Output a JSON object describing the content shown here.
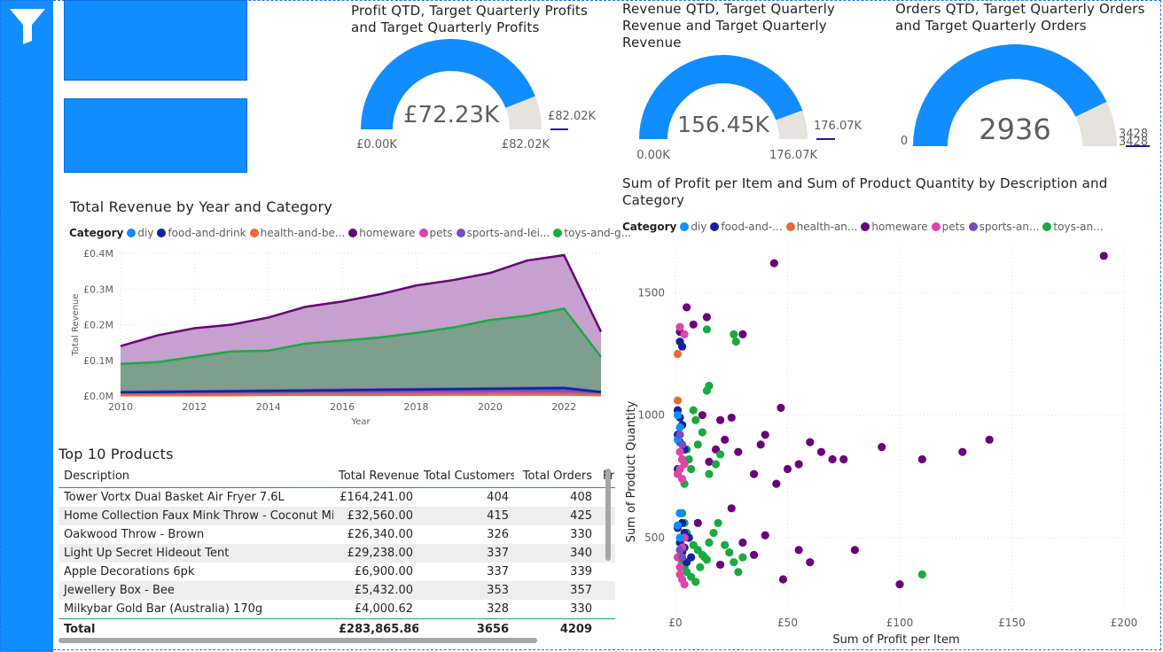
{
  "filter_pane": {
    "icon": "filter-icon"
  },
  "gauges": [
    {
      "id": "profit",
      "title_lines": [
        "Profit QTD, Target Quarterly Profits",
        "and Target Quarterly Profits"
      ],
      "value_label": "£72.23K",
      "min_label": "£0.00K",
      "max_label": "£82.02K",
      "target_label": "£82.02K",
      "fill_fraction": 0.88
    },
    {
      "id": "revenue",
      "title_lines": [
        "Revenue QTD, Target Quarterly",
        "Revenue and Target Quarterly",
        "Revenue"
      ],
      "value_label": "156.45K",
      "min_label": "0.00K",
      "max_label": "176.07K",
      "target_label": "176.07K",
      "fill_fraction": 0.889
    },
    {
      "id": "orders",
      "title_lines": [
        "Orders QTD, Target Quarterly Orders",
        "and Target Quarterly Orders"
      ],
      "value_label": "2936",
      "min_label": "0",
      "max_label": "3428",
      "target_label": "3428",
      "fill_fraction": 0.856
    }
  ],
  "colors": {
    "diy": "#118dff",
    "food-and-drink": "#12239e",
    "health-and-beauty": "#e66c37",
    "homeware": "#6b007b",
    "pets": "#e044a7",
    "sports-and-leisure": "#744ec2",
    "toys-and-games": "#1aab40"
  },
  "area_chart": {
    "title": "Total Revenue by Year and Category",
    "legend_label": "Category",
    "legend": [
      "diy",
      "food-and-drink",
      "health-and-be...",
      "homeware",
      "pets",
      "sports-and-lei...",
      "toys-and-g..."
    ],
    "xlabel": "Year",
    "ylabel": "Total Revenue",
    "y_ticks": [
      "£0.0M",
      "£0.1M",
      "£0.2M",
      "£0.3M",
      "£0.4M"
    ],
    "x_ticks": [
      "2010",
      "2012",
      "2014",
      "2016",
      "2018",
      "2020",
      "2022"
    ]
  },
  "chart_data": [
    {
      "type": "area",
      "title": "Total Revenue by Year and Category",
      "xlabel": "Year",
      "ylabel": "Total Revenue",
      "ylim": [
        0,
        0.4
      ],
      "y_unit": "£M",
      "x": [
        2010,
        2011,
        2012,
        2013,
        2014,
        2015,
        2016,
        2017,
        2018,
        2019,
        2020,
        2021,
        2022,
        2023
      ],
      "series": [
        {
          "name": "homeware",
          "values": [
            0.14,
            0.17,
            0.19,
            0.2,
            0.22,
            0.25,
            0.265,
            0.285,
            0.31,
            0.325,
            0.345,
            0.38,
            0.395,
            0.18
          ]
        },
        {
          "name": "toys-and-games",
          "values": [
            0.09,
            0.095,
            0.11,
            0.125,
            0.127,
            0.147,
            0.155,
            0.164,
            0.177,
            0.192,
            0.213,
            0.225,
            0.245,
            0.11
          ]
        },
        {
          "name": "sports-and-leisure",
          "values": [
            0.012,
            0.013,
            0.014,
            0.015,
            0.016,
            0.017,
            0.018,
            0.019,
            0.02,
            0.021,
            0.022,
            0.023,
            0.024,
            0.012
          ]
        },
        {
          "name": "food-and-drink",
          "values": [
            0.01,
            0.011,
            0.012,
            0.013,
            0.014,
            0.015,
            0.016,
            0.017,
            0.018,
            0.019,
            0.02,
            0.021,
            0.022,
            0.011
          ]
        },
        {
          "name": "pets",
          "values": [
            0.004,
            0.004,
            0.005,
            0.005,
            0.005,
            0.006,
            0.006,
            0.006,
            0.007,
            0.007,
            0.008,
            0.008,
            0.008,
            0.004
          ]
        },
        {
          "name": "health-and-beauty",
          "values": [
            0.002,
            0.002,
            0.002,
            0.002,
            0.003,
            0.003,
            0.003,
            0.003,
            0.003,
            0.004,
            0.004,
            0.004,
            0.004,
            0.002
          ]
        }
      ]
    },
    {
      "type": "scatter",
      "title": "Sum of Profit per Item and Sum of Product Quantity by Description and Category",
      "xlabel": "Sum of Profit per Item",
      "ylabel": "Sum of Product Quantity",
      "xlim": [
        0,
        200
      ],
      "ylim": [
        200,
        1700
      ],
      "x_ticks": [
        "£0",
        "£50",
        "£100",
        "£150",
        "£200"
      ],
      "y_ticks": [
        "500",
        "1000",
        "1500"
      ],
      "legend_label": "Category",
      "legend": [
        "diy",
        "food-and-...",
        "health-an...",
        "homeware",
        "pets",
        "sports-an...",
        "toys-an..."
      ],
      "series": [
        {
          "name": "homeware",
          "points": [
            [
              44,
              1620
            ],
            [
              191,
              1650
            ],
            [
              5,
              1440
            ],
            [
              14,
              1400
            ],
            [
              30,
              1330
            ],
            [
              8,
              1370
            ],
            [
              2,
              1340
            ],
            [
              47,
              1030
            ],
            [
              12,
              1000
            ],
            [
              20,
              980
            ],
            [
              25,
              990
            ],
            [
              40,
              920
            ],
            [
              60,
              890
            ],
            [
              92,
              870
            ],
            [
              110,
              820
            ],
            [
              128,
              850
            ],
            [
              140,
              900
            ],
            [
              55,
              800
            ],
            [
              75,
              820
            ],
            [
              35,
              760
            ],
            [
              45,
              720
            ],
            [
              15,
              810
            ],
            [
              28,
              850
            ],
            [
              50,
              780
            ],
            [
              100,
              310
            ],
            [
              80,
              450
            ],
            [
              48,
              330
            ],
            [
              60,
              400
            ],
            [
              30,
              480
            ],
            [
              40,
              510
            ],
            [
              20,
              390
            ],
            [
              25,
              620
            ],
            [
              10,
              560
            ],
            [
              35,
              430
            ],
            [
              55,
              450
            ],
            [
              70,
              820
            ],
            [
              65,
              850
            ],
            [
              22,
              900
            ],
            [
              18,
              860
            ],
            [
              38,
              880
            ]
          ]
        },
        {
          "name": "toys-and-games",
          "points": [
            [
              26,
              1330
            ],
            [
              27,
              1300
            ],
            [
              14,
              1350
            ],
            [
              15,
              1120
            ],
            [
              14,
              1100
            ],
            [
              8,
              1020
            ],
            [
              9,
              980
            ],
            [
              12,
              930
            ],
            [
              10,
              880
            ],
            [
              5,
              860
            ],
            [
              6,
              820
            ],
            [
              7,
              780
            ],
            [
              15,
              760
            ],
            [
              18,
              800
            ],
            [
              20,
              840
            ],
            [
              4,
              720
            ],
            [
              110,
              350
            ],
            [
              3,
              600
            ],
            [
              4,
              560
            ],
            [
              5,
              520
            ],
            [
              6,
              500
            ],
            [
              8,
              470
            ],
            [
              10,
              450
            ],
            [
              12,
              430
            ],
            [
              14,
              410
            ],
            [
              3,
              400
            ],
            [
              4,
              380
            ],
            [
              5,
              360
            ],
            [
              7,
              340
            ],
            [
              9,
              320
            ],
            [
              11,
              380
            ],
            [
              13,
              420
            ],
            [
              15,
              480
            ],
            [
              17,
              520
            ],
            [
              19,
              560
            ],
            [
              22,
              470
            ],
            [
              24,
              440
            ],
            [
              26,
              400
            ],
            [
              28,
              360
            ],
            [
              30,
              420
            ]
          ]
        },
        {
          "name": "food-and-drink",
          "points": [
            [
              2,
              1300
            ],
            [
              3,
              1280
            ],
            [
              1,
              1020
            ],
            [
              2,
              990
            ],
            [
              3,
              960
            ],
            [
              1,
              920
            ],
            [
              2,
              890
            ],
            [
              4,
              860
            ],
            [
              3,
              820
            ],
            [
              1,
              780
            ],
            [
              2,
              600
            ],
            [
              3,
              560
            ],
            [
              4,
              520
            ],
            [
              2,
              480
            ],
            [
              3,
              440
            ],
            [
              5,
              400
            ],
            [
              6,
              500
            ],
            [
              1,
              540
            ],
            [
              4,
              460
            ],
            [
              7,
              420
            ]
          ]
        },
        {
          "name": "pets",
          "points": [
            [
              2,
              1360
            ],
            [
              4,
              1330
            ],
            [
              2,
              850
            ],
            [
              3,
              820
            ],
            [
              4,
              800
            ],
            [
              2,
              780
            ],
            [
              1,
              760
            ],
            [
              3,
              740
            ],
            [
              2,
              350
            ],
            [
              3,
              330
            ],
            [
              4,
              310
            ],
            [
              2,
              380
            ],
            [
              1,
              420
            ],
            [
              3,
              460
            ],
            [
              4,
              500
            ]
          ]
        },
        {
          "name": "health-and-beauty",
          "points": [
            [
              1,
              1250
            ],
            [
              1,
              1060
            ]
          ]
        },
        {
          "name": "diy",
          "points": [
            [
              1,
              1000
            ],
            [
              2,
              950
            ],
            [
              1,
              900
            ],
            [
              2,
              600
            ],
            [
              1,
              550
            ],
            [
              2,
              500
            ]
          ]
        },
        {
          "name": "sports-and-leisure",
          "points": [
            [
              2,
              920
            ],
            [
              3,
              880
            ],
            [
              2,
              450
            ],
            [
              3,
              420
            ]
          ]
        }
      ]
    }
  ],
  "scatter": {
    "title_lines": [
      "Sum of Profit per Item and Sum of Product Quantity by Description and",
      "Category"
    ]
  },
  "table": {
    "title": "Top 10 Products",
    "columns": [
      "Description",
      "Total Revenue",
      "Total Customers",
      "Total Orders",
      "Pr"
    ],
    "rows": [
      [
        "Tower Vortx Dual Basket Air Fryer 7.6L",
        "£164,241.00",
        "404",
        "408"
      ],
      [
        "Home Collection Faux Mink Throw - Coconut Milk",
        "£32,560.00",
        "415",
        "425"
      ],
      [
        "Oakwood Throw - Brown",
        "£26,340.00",
        "326",
        "330"
      ],
      [
        "Light Up Secret Hideout Tent",
        "£29,238.00",
        "337",
        "340"
      ],
      [
        "Apple Decorations 6pk",
        "£6,900.00",
        "337",
        "339"
      ],
      [
        "Jewellery Box - Bee",
        "£5,432.00",
        "353",
        "357"
      ],
      [
        "Milkybar Gold Bar (Australia) 170g",
        "£4,000.62",
        "328",
        "330"
      ]
    ],
    "total": [
      "Total",
      "£283,865.86",
      "3656",
      "4209"
    ]
  }
}
